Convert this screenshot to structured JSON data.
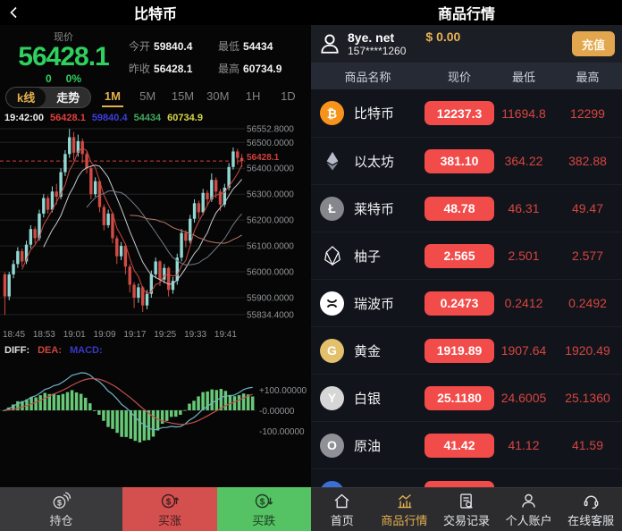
{
  "colors": {
    "accent_gold": "#e3b04f",
    "price_green": "#2fd05f",
    "pill_red": "#f14b4a",
    "value_red": "#d64540",
    "candle_up": "#93d8d2",
    "candle_down": "#d14b45",
    "macd_bar_green": "#68c877",
    "diff_line": "#6fb3c9",
    "dea_line": "#c0504d",
    "grid_line": "#232323",
    "axis_text": "#8f9398",
    "price_line_red": "#d0403c"
  },
  "left": {
    "header": {
      "title": "比特币"
    },
    "stats": {
      "price_label": "现价",
      "price": "56428.1",
      "change": "0",
      "change_pct": "0%",
      "pairs": [
        {
          "label": "今开",
          "value": "59840.4"
        },
        {
          "label": "最低",
          "value": "54434"
        },
        {
          "label": "昨收",
          "value": "56428.1"
        },
        {
          "label": "最高",
          "value": "60734.9"
        }
      ]
    },
    "view_tabs": [
      {
        "label": "k线",
        "active": true
      },
      {
        "label": "走势",
        "active": false
      }
    ],
    "timeframes": [
      {
        "label": "1M",
        "active": true
      },
      {
        "label": "5M",
        "active": false
      },
      {
        "label": "15M",
        "active": false
      },
      {
        "label": "30M",
        "active": false
      },
      {
        "label": "1H",
        "active": false
      },
      {
        "label": "1D",
        "active": false
      }
    ],
    "ohlc_info": [
      {
        "text": "19:42:00",
        "color": "#ededed"
      },
      {
        "text": "56428.1",
        "color": "#e0403c"
      },
      {
        "text": "59840.4",
        "color": "#3d3ddd"
      },
      {
        "text": "54434",
        "color": "#43a65c"
      },
      {
        "text": "60734.9",
        "color": "#d6d648"
      }
    ],
    "macd_legend": [
      {
        "text": "DIFF:",
        "color": "#e0e0e0"
      },
      {
        "text": "DEA:",
        "color": "#cc453f"
      },
      {
        "text": "MACD:",
        "color": "#3838c8"
      }
    ],
    "actions": [
      {
        "label": "持仓",
        "icon": "position-coins",
        "bg": "#3a3a3c",
        "fg": "#d9d9d9"
      },
      {
        "label": "买涨",
        "icon": "buy-up",
        "bg": "#d4504f",
        "fg": "#3c1d1f"
      },
      {
        "label": "买跌",
        "icon": "buy-down",
        "bg": "#55c263",
        "fg": "#1d3c24"
      }
    ]
  },
  "chart_data": [
    {
      "type": "candlestick",
      "symbol": "比特币",
      "interval": "1M",
      "ylim": [
        55834.4,
        56552.8
      ],
      "y_ticks": [
        56552.8,
        56500,
        56400,
        56300,
        56200,
        56100,
        56000,
        55900,
        55834.4
      ],
      "y_labels": [
        "56552.8000",
        "56500.0000",
        "56400.0000",
        "56300.0000",
        "56200.0000",
        "56100.0000",
        "56000.0000",
        "55900.0000",
        "55834.4000"
      ],
      "x_labels": [
        "18:45",
        "18:53",
        "19:01",
        "19:09",
        "19:17",
        "19:25",
        "19:33",
        "19:41"
      ],
      "current_price": 56428.1,
      "current_price_label": "56428.1",
      "ma": [
        {
          "period": 5,
          "color": "#cc4a42"
        },
        {
          "period": 10,
          "color": "#c6cad1"
        },
        {
          "period": 20,
          "color": "#717b88"
        },
        {
          "period": 30,
          "color": "#b5786a"
        }
      ],
      "candles": [
        [
          55990,
          55905,
          55834,
          55998
        ],
        [
          55905,
          55990,
          55890,
          56000
        ],
        [
          55990,
          56030,
          55975,
          56045
        ],
        [
          56030,
          56080,
          56015,
          56095
        ],
        [
          56080,
          56040,
          56020,
          56090
        ],
        [
          56040,
          56105,
          56030,
          56120
        ],
        [
          56105,
          56165,
          56090,
          56180
        ],
        [
          56165,
          56130,
          56110,
          56175
        ],
        [
          56130,
          56225,
          56120,
          56240
        ],
        [
          56225,
          56285,
          56210,
          56300
        ],
        [
          56285,
          56240,
          56225,
          56295
        ],
        [
          56240,
          56310,
          56230,
          56330
        ],
        [
          56310,
          56290,
          56260,
          56340
        ],
        [
          56290,
          56385,
          56280,
          56400
        ],
        [
          56385,
          56455,
          56370,
          56470
        ],
        [
          56455,
          56520,
          56440,
          56552
        ],
        [
          56520,
          56460,
          56430,
          56540
        ],
        [
          56460,
          56505,
          56445,
          56530
        ],
        [
          56505,
          56455,
          56420,
          56515
        ],
        [
          56455,
          56400,
          56380,
          56465
        ],
        [
          56400,
          56300,
          56280,
          56410
        ],
        [
          56300,
          56350,
          56290,
          56365
        ],
        [
          56350,
          56250,
          56230,
          56355
        ],
        [
          56250,
          56180,
          56160,
          56260
        ],
        [
          56180,
          56225,
          56170,
          56240
        ],
        [
          56225,
          56130,
          56110,
          56230
        ],
        [
          56130,
          56060,
          56030,
          56140
        ],
        [
          56060,
          56100,
          56045,
          56115
        ],
        [
          56100,
          56020,
          55990,
          56105
        ],
        [
          56020,
          55950,
          55920,
          56030
        ],
        [
          55950,
          55900,
          55860,
          55960
        ],
        [
          55900,
          55940,
          55880,
          55955
        ],
        [
          55940,
          55870,
          55845,
          55945
        ],
        [
          55870,
          55915,
          55855,
          55930
        ],
        [
          55915,
          55990,
          55900,
          56005
        ],
        [
          55990,
          56040,
          55975,
          56055
        ],
        [
          56040,
          55970,
          55945,
          56045
        ],
        [
          55970,
          56015,
          55955,
          56030
        ],
        [
          56015,
          55930,
          55905,
          56020
        ],
        [
          55930,
          55965,
          55915,
          55980
        ],
        [
          55965,
          56055,
          55950,
          56070
        ],
        [
          56055,
          56150,
          56040,
          56165
        ],
        [
          56150,
          56120,
          56095,
          56160
        ],
        [
          56120,
          56205,
          56110,
          56220
        ],
        [
          56205,
          56265,
          56190,
          56280
        ],
        [
          56265,
          56230,
          56205,
          56275
        ],
        [
          56230,
          56305,
          56220,
          56320
        ],
        [
          56305,
          56280,
          56255,
          56315
        ],
        [
          56280,
          56355,
          56270,
          56380
        ],
        [
          56355,
          56310,
          56285,
          56365
        ],
        [
          56310,
          56260,
          56235,
          56320
        ],
        [
          56260,
          56325,
          56250,
          56340
        ],
        [
          56325,
          56405,
          56315,
          56420
        ],
        [
          56405,
          56465,
          56395,
          56480
        ],
        [
          56465,
          56440,
          56415,
          56475
        ],
        [
          56440,
          56428,
          56405,
          56455
        ]
      ]
    },
    {
      "type": "macd",
      "params": [
        12,
        26,
        9
      ],
      "y_labels": [
        "+100.00000",
        "-0.00000",
        "-100.00000"
      ]
    }
  ],
  "right": {
    "header": {
      "title": "商品行情"
    },
    "user": {
      "name": "8ye. net",
      "phone": "157****1260",
      "balance": "$ 0.00",
      "recharge_label": "充值"
    },
    "table": {
      "headers": [
        "商品名称",
        "现价",
        "最低",
        "最高"
      ],
      "rows": [
        {
          "name": "比特币",
          "icon": "btc",
          "icon_bg": "#f7931a",
          "glyph": "₿",
          "price": "12237.3",
          "low": "11694.8",
          "high": "12299"
        },
        {
          "name": "以太坊",
          "icon": "eth",
          "icon_bg": "transparent",
          "glyph": "",
          "price": "381.10",
          "low": "364.22",
          "high": "382.88"
        },
        {
          "name": "莱特币",
          "icon": "ltc",
          "icon_bg": "#85878c",
          "glyph": "Ł",
          "price": "48.78",
          "low": "46.31",
          "high": "49.47"
        },
        {
          "name": "柚子",
          "icon": "eos",
          "icon_bg": "transparent",
          "glyph": "",
          "price": "2.565",
          "low": "2.501",
          "high": "2.577"
        },
        {
          "name": "瑞波币",
          "icon": "xrp",
          "icon_bg": "#ffffff",
          "glyph": "",
          "price": "0.2473",
          "low": "0.2412",
          "high": "0.2492"
        },
        {
          "name": "黄金",
          "icon": "gold",
          "icon_bg": "#e3c06c",
          "glyph": "G",
          "price": "1919.89",
          "low": "1907.64",
          "high": "1920.49"
        },
        {
          "name": "白银",
          "icon": "silver",
          "icon_bg": "#d6d6d6",
          "glyph": "Y",
          "price": "25.1180",
          "low": "24.6005",
          "high": "25.1360"
        },
        {
          "name": "原油",
          "icon": "oil",
          "icon_bg": "#8f9196",
          "glyph": "O",
          "price": "41.42",
          "low": "41.12",
          "high": "41.59"
        },
        {
          "name": "",
          "icon": "partial",
          "icon_bg": "#3a6fd8",
          "glyph": "",
          "price": "",
          "low": "",
          "high": ""
        }
      ]
    },
    "nav": [
      {
        "label": "首页",
        "icon": "home",
        "active": false
      },
      {
        "label": "商品行情",
        "icon": "market",
        "active": true
      },
      {
        "label": "交易记录",
        "icon": "records",
        "active": false
      },
      {
        "label": "个人账户",
        "icon": "account",
        "active": false
      },
      {
        "label": "在线客服",
        "icon": "service",
        "active": false
      }
    ]
  }
}
